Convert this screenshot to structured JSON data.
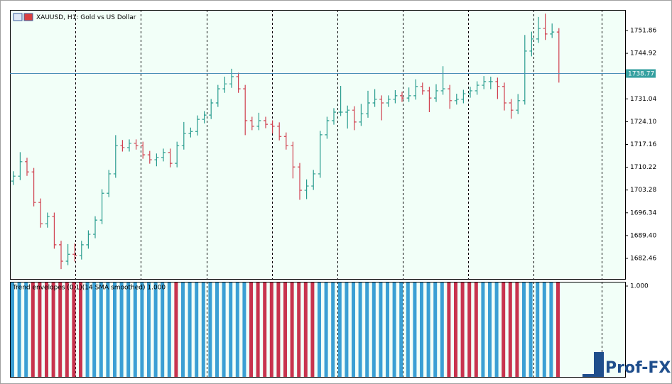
{
  "chart_data": {
    "type": "ohlc",
    "title": "XAUUSD, H1:  Gold vs US Dollar",
    "up_color": "#2a9d8f",
    "down_color": "#d0414f",
    "open": [
      1706.0,
      1707.5,
      1711.9,
      1708.8,
      1699.5,
      1693.0,
      1695.2,
      1686.6,
      1681.6,
      1683.7,
      1683.3,
      1686.6,
      1689.8,
      1694.1,
      1702.3,
      1708.2,
      1716.8,
      1716.2,
      1717.5,
      1716.8,
      1714.0,
      1712.5,
      1713.2,
      1714.7,
      1711.4,
      1716.8,
      1720.5,
      1721.1,
      1724.8,
      1726.1,
      1729.8,
      1734.1,
      1735.6,
      1737.8,
      1734.1,
      1724.4,
      1722.7,
      1724.4,
      1723.3,
      1722.7,
      1719.6,
      1716.8,
      1710.3,
      1703.2,
      1704.5,
      1708.2,
      1720.1,
      1724.4,
      1727.0,
      1727.0,
      1727.6,
      1724.0,
      1726.5,
      1729.8,
      1730.9,
      1729.8,
      1730.9,
      1732.0,
      1731.3,
      1732.0,
      1734.8,
      1733.5,
      1731.3,
      1733.5,
      1734.1,
      1730.5,
      1730.9,
      1732.6,
      1733.5,
      1735.2,
      1736.3,
      1736.3,
      1734.8,
      1729.8,
      1727.6,
      1730.5,
      1745.6,
      1749.3,
      1752.5,
      1750.8,
      1751.4
    ],
    "high": [
      1709.0,
      1714.8,
      1713.1,
      1710.0,
      1700.7,
      1696.4,
      1696.4,
      1687.8,
      1686.8,
      1687.0,
      1687.8,
      1691.0,
      1695.3,
      1703.5,
      1709.4,
      1720.0,
      1718.5,
      1718.7,
      1718.7,
      1718.0,
      1715.2,
      1714.4,
      1715.9,
      1715.9,
      1718.0,
      1724.0,
      1722.3,
      1726.0,
      1727.3,
      1731.0,
      1735.3,
      1737.8,
      1740.2,
      1739.0,
      1735.3,
      1725.6,
      1726.8,
      1725.6,
      1724.5,
      1723.9,
      1720.8,
      1718.0,
      1711.5,
      1706.5,
      1709.4,
      1721.3,
      1725.6,
      1728.2,
      1735.0,
      1729.0,
      1728.8,
      1729.5,
      1733.5,
      1734.0,
      1732.1,
      1732.1,
      1733.7,
      1733.2,
      1734.5,
      1737.0,
      1736.0,
      1734.7,
      1735.5,
      1741.0,
      1735.3,
      1732.6,
      1733.8,
      1734.7,
      1736.4,
      1738.0,
      1737.8,
      1737.5,
      1736.0,
      1731.0,
      1732.5,
      1750.5,
      1751.5,
      1756.0,
      1757.0,
      1754.0,
      1752.6
    ],
    "low": [
      1704.8,
      1706.3,
      1707.6,
      1698.3,
      1691.8,
      1691.8,
      1685.4,
      1679.2,
      1680.4,
      1681.5,
      1682.1,
      1685.4,
      1688.6,
      1692.9,
      1701.1,
      1707.0,
      1715.0,
      1715.0,
      1715.6,
      1712.8,
      1711.3,
      1710.5,
      1712.0,
      1710.2,
      1710.2,
      1715.6,
      1719.3,
      1719.9,
      1723.6,
      1724.9,
      1728.6,
      1732.9,
      1734.4,
      1732.9,
      1720.0,
      1721.5,
      1721.5,
      1722.1,
      1720.5,
      1718.4,
      1715.6,
      1706.8,
      1700.3,
      1700.5,
      1703.3,
      1707.0,
      1718.9,
      1723.2,
      1725.8,
      1722.0,
      1721.5,
      1722.8,
      1725.3,
      1728.6,
      1724.5,
      1728.6,
      1729.7,
      1730.1,
      1730.1,
      1730.8,
      1732.3,
      1727.0,
      1730.1,
      1732.3,
      1728.0,
      1729.3,
      1729.7,
      1731.4,
      1732.3,
      1734.0,
      1734.0,
      1731.0,
      1727.5,
      1725.0,
      1726.4,
      1729.3,
      1744.0,
      1748.1,
      1749.0,
      1749.6,
      1736.0
    ],
    "close": [
      1707.5,
      1711.9,
      1708.8,
      1699.5,
      1693.0,
      1695.2,
      1686.6,
      1681.6,
      1683.7,
      1683.3,
      1686.6,
      1689.8,
      1694.1,
      1702.3,
      1708.2,
      1716.8,
      1716.2,
      1717.5,
      1716.8,
      1714.0,
      1712.5,
      1713.2,
      1714.7,
      1711.4,
      1716.8,
      1720.5,
      1721.1,
      1724.8,
      1726.1,
      1729.8,
      1734.1,
      1735.6,
      1737.8,
      1734.1,
      1724.4,
      1722.7,
      1724.4,
      1723.3,
      1722.7,
      1719.6,
      1716.8,
      1710.3,
      1703.2,
      1704.5,
      1708.2,
      1720.1,
      1724.4,
      1727.0,
      1727.0,
      1727.6,
      1724.0,
      1726.5,
      1729.8,
      1730.9,
      1729.8,
      1730.9,
      1732.0,
      1731.3,
      1732.0,
      1734.8,
      1733.5,
      1731.3,
      1733.5,
      1734.1,
      1730.5,
      1730.9,
      1732.6,
      1733.5,
      1735.2,
      1736.3,
      1736.3,
      1734.8,
      1729.8,
      1727.6,
      1730.5,
      1745.6,
      1749.3,
      1752.5,
      1750.8,
      1751.4,
      1738.77
    ],
    "ylim": [
      1676.19,
      1758.13
    ],
    "yticks": [
      1751.86,
      1744.92,
      1731.04,
      {
        "value": 1724.1,
        "label": "1724.10"
      },
      1717.16,
      1710.22,
      1703.28,
      1696.34,
      {
        "value": 1689.4,
        "label": "1689.40"
      },
      1682.46
    ],
    "price_line": {
      "value": 1738.77,
      "color": "#4a8fb8",
      "label_color": "#35a0a0"
    },
    "indicator": {
      "type": "histogram",
      "title": "Trend envelopes (0.1)(14 SMA smoothed) 1.000",
      "ylim": [
        0,
        1
      ],
      "yticks": [
        {
          "value": 1,
          "label": "1.000"
        }
      ],
      "series": [
        {
          "color": "#3b9fd4",
          "values": [
            1,
            1,
            1,
            null,
            null,
            null,
            null,
            null,
            null,
            null,
            null,
            1,
            1,
            1,
            1,
            1,
            1,
            1,
            1,
            1,
            1,
            1,
            1,
            1,
            null,
            1,
            1,
            1,
            1,
            1,
            1,
            1,
            1,
            1,
            1,
            null,
            null,
            null,
            null,
            null,
            null,
            null,
            null,
            null,
            null,
            1,
            1,
            1,
            1,
            1,
            1,
            1,
            1,
            1,
            1,
            1,
            1,
            1,
            1,
            1,
            1,
            1,
            1,
            1,
            null,
            null,
            null,
            null,
            null,
            1,
            1,
            1,
            null,
            null,
            null,
            1,
            1,
            1,
            1,
            1,
            null
          ]
        },
        {
          "color": "#c8334e",
          "values": [
            null,
            null,
            null,
            1,
            1,
            1,
            1,
            1,
            1,
            1,
            1,
            null,
            null,
            null,
            null,
            null,
            null,
            null,
            null,
            null,
            null,
            null,
            null,
            null,
            1,
            null,
            null,
            null,
            null,
            null,
            null,
            null,
            null,
            null,
            null,
            1,
            1,
            1,
            1,
            1,
            1,
            1,
            1,
            1,
            1,
            null,
            null,
            null,
            null,
            null,
            null,
            null,
            null,
            null,
            null,
            null,
            null,
            null,
            null,
            null,
            null,
            null,
            null,
            null,
            1,
            1,
            1,
            1,
            1,
            null,
            null,
            null,
            1,
            1,
            1,
            null,
            null,
            null,
            null,
            null,
            1
          ]
        }
      ]
    },
    "brand": "Prof-FX"
  }
}
